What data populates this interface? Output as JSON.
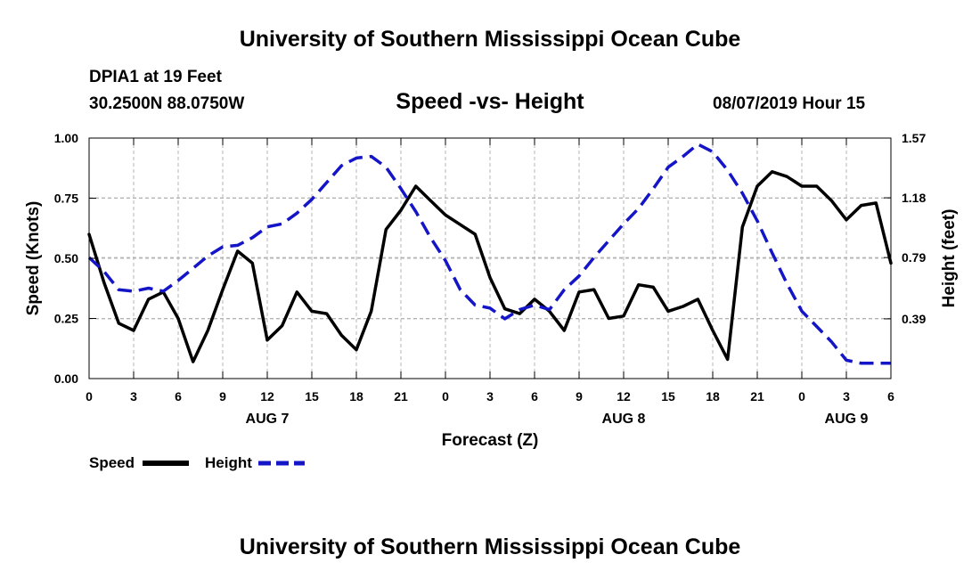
{
  "header": {
    "title": "University of Southern Mississippi Ocean Cube",
    "station": "DPIA1 at 19 Feet",
    "coords": "30.2500N 88.0750W",
    "datetime": "08/07/2019 Hour 15"
  },
  "footer": {
    "title": "University of Southern Mississippi Ocean Cube"
  },
  "chart_data": {
    "type": "line",
    "title": "Speed -vs- Height",
    "xlabel": "Forecast (Z)",
    "ylabel": "Speed (Knots)",
    "y2label": "Height (feet)",
    "xlim": [
      0,
      54
    ],
    "ylim": [
      0,
      1
    ],
    "y2lim": [
      0,
      1.57
    ],
    "x_ticks": [
      0,
      3,
      6,
      9,
      12,
      15,
      18,
      21,
      24,
      27,
      30,
      33,
      36,
      39,
      42,
      45,
      48,
      51,
      54
    ],
    "x_tick_labels": [
      "0",
      "3",
      "6",
      "9",
      "12",
      "15",
      "18",
      "21",
      "0",
      "3",
      "6",
      "9",
      "12",
      "15",
      "18",
      "21",
      "0",
      "3",
      "6"
    ],
    "y_ticks": [
      0,
      0.25,
      0.5,
      0.75,
      1.0
    ],
    "y_tick_labels": [
      "0.00",
      "0.25",
      "0.50",
      "0.75",
      "1.00"
    ],
    "y2_ticks": [
      0.39,
      0.79,
      1.18,
      1.57
    ],
    "y2_tick_labels": [
      "0.39",
      "0.79",
      "1.18",
      "1.57"
    ],
    "date_labels": [
      {
        "x": 12,
        "label": "AUG 7"
      },
      {
        "x": 36,
        "label": "AUG 8"
      },
      {
        "x": 51,
        "label": "AUG 9"
      }
    ],
    "grid": true,
    "legend": [
      {
        "name": "Speed",
        "color": "#000000",
        "style": "solid"
      },
      {
        "name": "Height",
        "color": "#1515c8",
        "style": "dashed"
      }
    ],
    "series": [
      {
        "name": "Speed",
        "axis": "left",
        "color": "#000000",
        "dash": "solid",
        "x": [
          0,
          1,
          2,
          3,
          4,
          5,
          6,
          7,
          8,
          9,
          10,
          11,
          12,
          13,
          14,
          15,
          16,
          17,
          18,
          19,
          20,
          21,
          22,
          23,
          24,
          25,
          26,
          27,
          28,
          29,
          30,
          31,
          32,
          33,
          34,
          35,
          36,
          37,
          38,
          39,
          40,
          41,
          42,
          43,
          44,
          45,
          46,
          47,
          48,
          49,
          50,
          51,
          52,
          53,
          54
        ],
        "values": [
          0.6,
          0.4,
          0.23,
          0.2,
          0.33,
          0.36,
          0.25,
          0.07,
          0.2,
          0.37,
          0.53,
          0.48,
          0.16,
          0.22,
          0.36,
          0.28,
          0.27,
          0.18,
          0.12,
          0.28,
          0.62,
          0.7,
          0.8,
          0.74,
          0.68,
          0.64,
          0.6,
          0.42,
          0.29,
          0.27,
          0.33,
          0.28,
          0.2,
          0.36,
          0.37,
          0.25,
          0.26,
          0.39,
          0.38,
          0.28,
          0.3,
          0.33,
          0.2,
          0.08,
          0.63,
          0.8,
          0.86,
          0.84,
          0.8,
          0.8,
          0.74,
          0.66,
          0.72,
          0.73,
          0.48
        ]
      },
      {
        "name": "Height",
        "axis": "right",
        "color": "#1515c8",
        "dash": "dashed",
        "x": [
          0,
          1,
          2,
          3,
          4,
          5,
          6,
          7,
          8,
          9,
          10,
          11,
          12,
          13,
          14,
          15,
          16,
          17,
          18,
          19,
          20,
          21,
          22,
          23,
          24,
          25,
          26,
          27,
          28,
          29,
          30,
          31,
          32,
          33,
          34,
          35,
          36,
          37,
          38,
          39,
          40,
          41,
          42,
          43,
          44,
          45,
          46,
          47,
          48,
          49,
          50,
          51,
          52,
          53,
          54
        ],
        "values": [
          0.79,
          0.7,
          0.58,
          0.57,
          0.59,
          0.57,
          0.64,
          0.72,
          0.8,
          0.86,
          0.87,
          0.92,
          0.99,
          1.01,
          1.08,
          1.17,
          1.28,
          1.39,
          1.44,
          1.45,
          1.38,
          1.24,
          1.09,
          0.92,
          0.77,
          0.58,
          0.48,
          0.46,
          0.39,
          0.45,
          0.48,
          0.45,
          0.58,
          0.67,
          0.79,
          0.9,
          1.01,
          1.11,
          1.24,
          1.38,
          1.45,
          1.53,
          1.48,
          1.36,
          1.21,
          1.03,
          0.82,
          0.62,
          0.44,
          0.34,
          0.24,
          0.12,
          0.1,
          0.1,
          0.1
        ]
      }
    ]
  }
}
